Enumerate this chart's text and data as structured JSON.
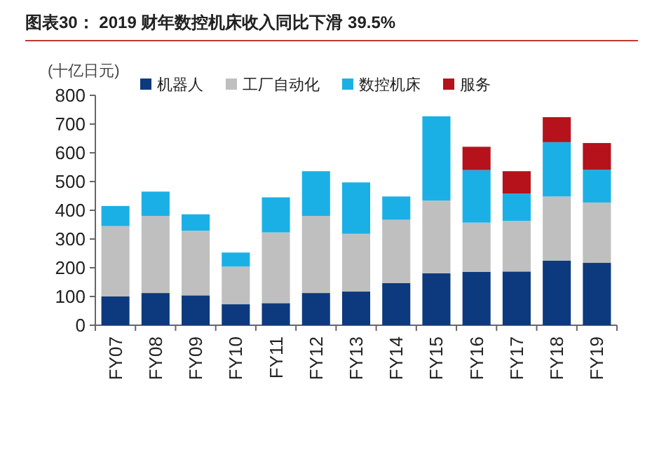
{
  "chart_data": {
    "type": "bar",
    "title": "图表30： 2019 财年数控机床收入同比下滑 39.5%",
    "ylabel": "(十亿日元)",
    "stacked": true,
    "legend": "top",
    "categories": [
      "FY07",
      "FY08",
      "FY09",
      "FY10",
      "FY11",
      "FY12",
      "FY13",
      "FY14",
      "FY15",
      "FY16",
      "FY17",
      "FY18",
      "FY19"
    ],
    "series": [
      {
        "name": "机器人",
        "color": "#0d3a7e",
        "values": [
          100,
          112,
          104,
          73,
          77,
          112,
          117,
          147,
          181,
          186,
          187,
          225,
          217
        ]
      },
      {
        "name": "工厂自动化",
        "color": "#bfbfbf",
        "values": [
          245,
          268,
          225,
          131,
          246,
          268,
          201,
          220,
          253,
          171,
          176,
          223,
          210
        ]
      },
      {
        "name": "数控机床",
        "color": "#1ab0e6",
        "values": [
          70,
          85,
          57,
          49,
          122,
          156,
          179,
          81,
          293,
          183,
          95,
          189,
          114
        ]
      },
      {
        "name": "服务",
        "color": "#b5121b",
        "values": [
          null,
          null,
          null,
          null,
          null,
          null,
          null,
          null,
          null,
          81,
          78,
          87,
          93
        ]
      }
    ],
    "ylim": [
      0,
      800
    ],
    "yticks": [
      0,
      100,
      200,
      300,
      400,
      500,
      600,
      700,
      800
    ]
  }
}
